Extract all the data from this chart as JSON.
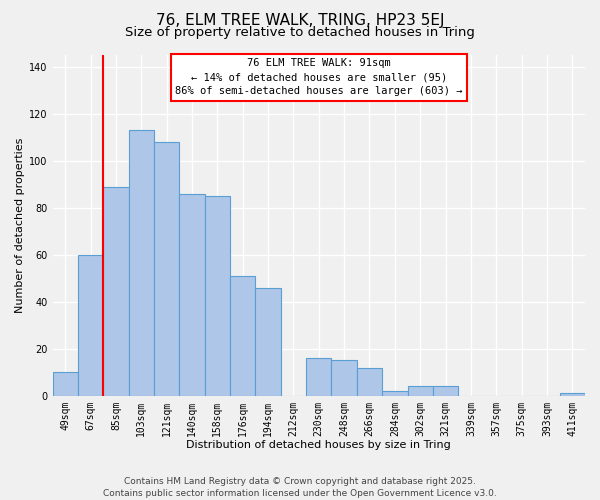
{
  "title": "76, ELM TREE WALK, TRING, HP23 5EJ",
  "subtitle": "Size of property relative to detached houses in Tring",
  "xlabel": "Distribution of detached houses by size in Tring",
  "ylabel": "Number of detached properties",
  "bar_labels": [
    "49sqm",
    "67sqm",
    "85sqm",
    "103sqm",
    "121sqm",
    "140sqm",
    "158sqm",
    "176sqm",
    "194sqm",
    "212sqm",
    "230sqm",
    "248sqm",
    "266sqm",
    "284sqm",
    "302sqm",
    "321sqm",
    "339sqm",
    "357sqm",
    "375sqm",
    "393sqm",
    "411sqm"
  ],
  "bar_values": [
    10,
    60,
    89,
    113,
    108,
    86,
    85,
    51,
    46,
    0,
    16,
    15,
    12,
    2,
    4,
    4,
    0,
    0,
    0,
    0,
    1
  ],
  "bar_color": "#aec6e8",
  "bar_edge_color": "#5a9fd4",
  "vline_color": "red",
  "vline_xindex": 2,
  "ylim": [
    0,
    145
  ],
  "annotation_title": "76 ELM TREE WALK: 91sqm",
  "annotation_line1": "← 14% of detached houses are smaller (95)",
  "annotation_line2": "86% of semi-detached houses are larger (603) →",
  "footer1": "Contains HM Land Registry data © Crown copyright and database right 2025.",
  "footer2": "Contains public sector information licensed under the Open Government Licence v3.0.",
  "background_color": "#f0f0f0",
  "grid_color": "#ffffff",
  "title_fontsize": 11,
  "subtitle_fontsize": 9.5,
  "axis_label_fontsize": 8,
  "tick_fontsize": 7,
  "footer_fontsize": 6.5
}
